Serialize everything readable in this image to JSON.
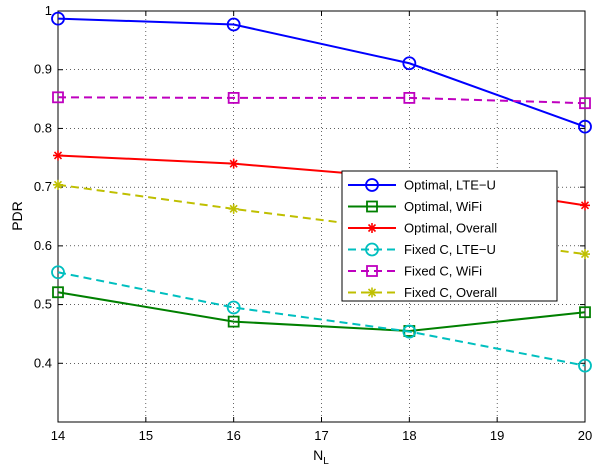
{
  "chart_data": {
    "type": "line",
    "xlabel": "N",
    "xlabel_subscript": "L",
    "ylabel": "PDR",
    "xlim": [
      14,
      20
    ],
    "ylim": [
      0.3,
      1.0
    ],
    "xticks": [
      14,
      15,
      16,
      17,
      18,
      19,
      20
    ],
    "yticks": [
      0.4,
      0.5,
      0.6,
      0.7,
      0.8,
      0.9,
      1
    ],
    "x": [
      14,
      16,
      18,
      20
    ],
    "grid": true,
    "legend_position": "center-right",
    "series": [
      {
        "name": "Optimal, LTE−U",
        "values": [
          0.987,
          0.977,
          0.911,
          0.803
        ],
        "color": "#0000ff",
        "dash": "solid",
        "marker": "circle"
      },
      {
        "name": "Optimal, WiFi",
        "values": [
          0.521,
          0.471,
          0.455,
          0.487
        ],
        "color": "#008000",
        "dash": "solid",
        "marker": "square"
      },
      {
        "name": "Optimal, Overall",
        "values": [
          0.754,
          0.74,
          0.715,
          0.669
        ],
        "color": "#ff0000",
        "dash": "solid",
        "marker": "asterisk"
      },
      {
        "name": "Fixed C, LTE−U",
        "values": [
          0.555,
          0.495,
          0.454,
          0.396
        ],
        "color": "#00bfbf",
        "dash": "dashed",
        "marker": "circle"
      },
      {
        "name": "Fixed C, WiFi",
        "values": [
          0.853,
          0.852,
          0.852,
          0.843
        ],
        "color": "#bf00bf",
        "dash": "dashed",
        "marker": "square"
      },
      {
        "name": "Fixed C, Overall",
        "values": [
          0.704,
          0.663,
          0.625,
          0.586
        ],
        "color": "#bfbf00",
        "dash": "dashed",
        "marker": "asterisk"
      }
    ]
  }
}
